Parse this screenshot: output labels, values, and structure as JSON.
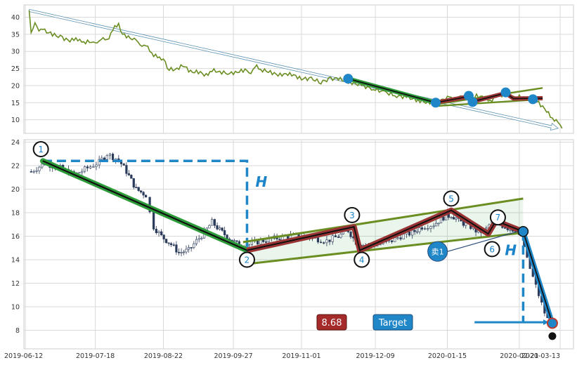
{
  "chart_data": [
    {
      "type": "line",
      "title": "",
      "xlabel": "",
      "ylabel": "",
      "ylim": [
        7,
        43
      ],
      "grid": true,
      "yticks": [
        10,
        15,
        20,
        25,
        30,
        35,
        40
      ],
      "series": [
        {
          "values": [
            [
              "2019-06-14",
              42.0
            ],
            [
              "2019-06-15",
              35.5
            ],
            [
              "2019-06-17",
              38.0
            ],
            [
              "2019-06-19",
              36.5
            ],
            [
              "2019-06-22",
              36.0
            ],
            [
              "2019-06-26",
              35.0
            ],
            [
              "2019-07-01",
              34.0
            ],
            [
              "2019-07-05",
              33.0
            ],
            [
              "2019-07-08",
              34.0
            ],
            [
              "2019-07-11",
              32.5
            ],
            [
              "2019-07-15",
              33.0
            ],
            [
              "2019-07-18",
              32.0
            ],
            [
              "2019-07-21",
              34.0
            ],
            [
              "2019-07-24",
              33.0
            ],
            [
              "2019-07-27",
              36.5
            ],
            [
              "2019-07-30",
              38.0
            ],
            [
              "2019-08-01",
              35.0
            ],
            [
              "2019-08-05",
              34.0
            ],
            [
              "2019-08-08",
              33.0
            ],
            [
              "2019-08-11",
              32.0
            ],
            [
              "2019-08-14",
              31.0
            ],
            [
              "2019-08-17",
              29.0
            ],
            [
              "2019-08-20",
              28.0
            ],
            [
              "2019-08-22",
              28.0
            ],
            [
              "2019-08-24",
              25.0
            ],
            [
              "2019-08-28",
              24.5
            ],
            [
              "2019-09-01",
              26.0
            ],
            [
              "2019-09-05",
              24.0
            ],
            [
              "2019-09-09",
              24.0
            ],
            [
              "2019-09-13",
              23.0
            ],
            [
              "2019-09-16",
              24.5
            ],
            [
              "2019-09-20",
              24.0
            ],
            [
              "2019-09-25",
              23.5
            ],
            [
              "2019-09-29",
              24.0
            ],
            [
              "2019-10-03",
              24.5
            ],
            [
              "2019-10-06",
              24.0
            ],
            [
              "2019-10-09",
              25.5
            ],
            [
              "2019-10-12",
              24.5
            ],
            [
              "2019-10-16",
              24.0
            ],
            [
              "2019-10-20",
              23.0
            ],
            [
              "2019-10-24",
              23.5
            ],
            [
              "2019-10-28",
              23.0
            ],
            [
              "2019-11-01",
              22.0
            ],
            [
              "2019-11-06",
              22.0
            ],
            [
              "2019-11-11",
              21.0
            ],
            [
              "2019-11-16",
              22.0
            ],
            [
              "2019-11-20",
              22.0
            ],
            [
              "2019-11-26",
              21.0
            ],
            [
              "2019-12-02",
              20.0
            ],
            [
              "2019-12-08",
              19.0
            ],
            [
              "2019-12-14",
              18.0
            ],
            [
              "2019-12-20",
              17.0
            ],
            [
              "2019-12-26",
              16.5
            ],
            [
              "2020-01-01",
              15.5
            ],
            [
              "2020-01-05",
              15.0
            ],
            [
              "2020-01-09",
              15.5
            ],
            [
              "2020-01-13",
              16.0
            ],
            [
              "2020-01-16",
              16.5
            ],
            [
              "2020-01-19",
              16.0
            ],
            [
              "2020-01-22",
              16.5
            ],
            [
              "2020-01-26",
              16.0
            ],
            [
              "2020-01-30",
              17.0
            ],
            [
              "2020-02-03",
              16.5
            ],
            [
              "2020-02-06",
              15.5
            ],
            [
              "2020-02-10",
              17.0
            ],
            [
              "2020-02-14",
              17.5
            ],
            [
              "2020-02-18",
              16.5
            ],
            [
              "2020-02-22",
              16.8
            ],
            [
              "2020-02-25",
              16.0
            ],
            [
              "2020-02-28",
              16.0
            ],
            [
              "2020-03-02",
              15.0
            ],
            [
              "2020-03-06",
              12.5
            ],
            [
              "2020-03-09",
              10.5
            ],
            [
              "2020-03-12",
              9.0
            ],
            [
              "2020-03-14",
              7.5
            ]
          ]
        }
      ],
      "overlays": {
        "trend_arrow": [
          [
            "2019-06-14",
            42.0
          ],
          [
            "2020-03-12",
            7.5
          ]
        ],
        "down_leg_green": [
          [
            "2019-11-25",
            22.0
          ],
          [
            "2020-01-09",
            15.0
          ]
        ],
        "zigzag": [
          [
            "2020-01-09",
            15.0
          ],
          [
            "2020-01-26",
            16.8
          ],
          [
            "2020-01-28",
            15.3
          ],
          [
            "2020-02-14",
            17.8
          ],
          [
            "2020-02-18",
            16.2
          ],
          [
            "2020-03-04",
            16.3
          ]
        ],
        "channel_upper": [
          [
            "2020-01-09",
            14.5
          ],
          [
            "2020-03-04",
            19.3
          ]
        ],
        "channel_lower": [
          [
            "2020-01-09",
            14.0
          ],
          [
            "2020-03-04",
            16.0
          ]
        ],
        "markers": [
          [
            "2019-11-25",
            22.0
          ],
          [
            "2020-01-09",
            15.0
          ],
          [
            "2020-01-26",
            17.0
          ],
          [
            "2020-01-28",
            15.2
          ],
          [
            "2020-02-14",
            18.0
          ],
          [
            "2020-02-28",
            16.0
          ]
        ]
      }
    },
    {
      "type": "candlestick",
      "title": "",
      "xlabel": "",
      "ylabel": "",
      "ylim": [
        6.6,
        24.2
      ],
      "grid": true,
      "yticks": [
        8,
        10,
        12,
        14,
        16,
        18,
        20,
        22,
        24
      ],
      "xticks": [
        "2019-06-12",
        "2019-07-18",
        "2019-08-22",
        "2019-09-27",
        "2019-11-01",
        "2019-12-09",
        "2020-01-15",
        "2020-02-21",
        "2020-03-13"
      ],
      "price_path": [
        [
          "2019-06-15",
          21.5
        ],
        [
          "2019-06-22",
          22.2
        ],
        [
          "2019-06-30",
          21.8
        ],
        [
          "2019-07-07",
          21.2
        ],
        [
          "2019-07-14",
          21.8
        ],
        [
          "2019-07-20",
          22.3
        ],
        [
          "2019-07-24",
          23.0
        ],
        [
          "2019-07-30",
          22.5
        ],
        [
          "2019-08-03",
          21.5
        ],
        [
          "2019-08-08",
          20.0
        ],
        [
          "2019-08-13",
          19.5
        ],
        [
          "2019-08-15",
          18.0
        ],
        [
          "2019-08-17",
          16.8
        ],
        [
          "2019-08-21",
          16.0
        ],
        [
          "2019-08-26",
          15.3
        ],
        [
          "2019-08-30",
          14.6
        ],
        [
          "2019-09-04",
          14.8
        ],
        [
          "2019-09-08",
          15.6
        ],
        [
          "2019-09-12",
          16.3
        ],
        [
          "2019-09-16",
          17.2
        ],
        [
          "2019-09-20",
          16.5
        ],
        [
          "2019-09-25",
          15.8
        ],
        [
          "2019-09-30",
          15.2
        ],
        [
          "2019-10-05",
          15.3
        ],
        [
          "2019-10-11",
          15.6
        ],
        [
          "2019-10-18",
          15.8
        ],
        [
          "2019-10-25",
          16.0
        ],
        [
          "2019-11-01",
          16.0
        ],
        [
          "2019-11-08",
          15.8
        ],
        [
          "2019-11-14",
          15.6
        ],
        [
          "2019-11-20",
          16.0
        ],
        [
          "2019-11-25",
          16.5
        ],
        [
          "2019-11-29",
          15.5
        ],
        [
          "2019-12-04",
          15.2
        ],
        [
          "2019-12-10",
          15.3
        ],
        [
          "2019-12-16",
          15.5
        ],
        [
          "2019-12-22",
          16.0
        ],
        [
          "2019-12-28",
          16.3
        ],
        [
          "2020-01-02",
          16.8
        ],
        [
          "2020-01-08",
          17.0
        ],
        [
          "2020-01-13",
          17.6
        ],
        [
          "2020-01-17",
          17.8
        ],
        [
          "2020-01-22",
          17.2
        ],
        [
          "2020-01-27",
          16.8
        ],
        [
          "2020-01-31",
          16.3
        ],
        [
          "2020-02-04",
          16.6
        ],
        [
          "2020-02-07",
          17.3
        ],
        [
          "2020-02-11",
          17.0
        ],
        [
          "2020-02-15",
          16.7
        ],
        [
          "2020-02-19",
          16.5
        ],
        [
          "2020-02-22",
          16.2
        ],
        [
          "2020-02-25",
          14.0
        ],
        [
          "2020-02-28",
          12.5
        ],
        [
          "2020-03-02",
          11.0
        ],
        [
          "2020-03-05",
          9.5
        ],
        [
          "2020-03-08",
          8.4
        ]
      ],
      "overlays": {
        "down_leg_green": [
          [
            "2019-06-21",
            22.4
          ],
          [
            "2019-10-04",
            14.8
          ]
        ],
        "h_target_dashed": [
          [
            "2019-06-21",
            22.4
          ],
          [
            "2019-10-04",
            22.4
          ],
          [
            "2019-10-04",
            14.8
          ]
        ],
        "zigzag": [
          [
            "2019-10-04",
            14.8
          ],
          [
            "2019-11-28",
            16.8
          ],
          [
            "2019-12-01",
            14.8
          ],
          [
            "2020-01-17",
            18.2
          ],
          [
            "2020-02-05",
            16.2
          ],
          [
            "2020-02-09",
            17.3
          ],
          [
            "2020-02-23",
            16.4
          ]
        ],
        "channel_upper": [
          [
            "2019-10-02",
            15.5
          ],
          [
            "2020-02-23",
            19.2
          ]
        ],
        "channel_lower": [
          [
            "2019-10-02",
            13.6
          ],
          [
            "2020-02-23",
            16.3
          ]
        ],
        "breakdown_path": [
          [
            "2020-02-23",
            16.4
          ],
          [
            "2020-03-09",
            8.6
          ]
        ],
        "final_point": [
          "2020-03-09",
          7.5
        ],
        "target_level": 8.68,
        "target_arrow_from": "2020-01-29",
        "h_projection": [
          [
            "2020-02-23",
            16.4
          ],
          [
            "2020-02-23",
            8.68
          ]
        ],
        "sell_signal_at": [
          "2020-01-10",
          14.7
        ]
      },
      "points": [
        {
          "label": "1",
          "x": "2019-06-20",
          "y": 23.4
        },
        {
          "label": "2",
          "x": "2019-10-04",
          "y": 14.0
        },
        {
          "label": "3",
          "x": "2019-11-27",
          "y": 17.8
        },
        {
          "label": "4",
          "x": "2019-12-02",
          "y": 14.0
        },
        {
          "label": "5",
          "x": "2020-01-17",
          "y": 19.2
        },
        {
          "label": "6",
          "x": "2020-02-07",
          "y": 14.9
        },
        {
          "label": "7",
          "x": "2020-02-10",
          "y": 17.6
        }
      ],
      "annotations": {
        "h_upper": "H",
        "h_lower": "H",
        "target_value": "8.68",
        "target_label": "Target",
        "sell_label": "卖1"
      }
    }
  ]
}
